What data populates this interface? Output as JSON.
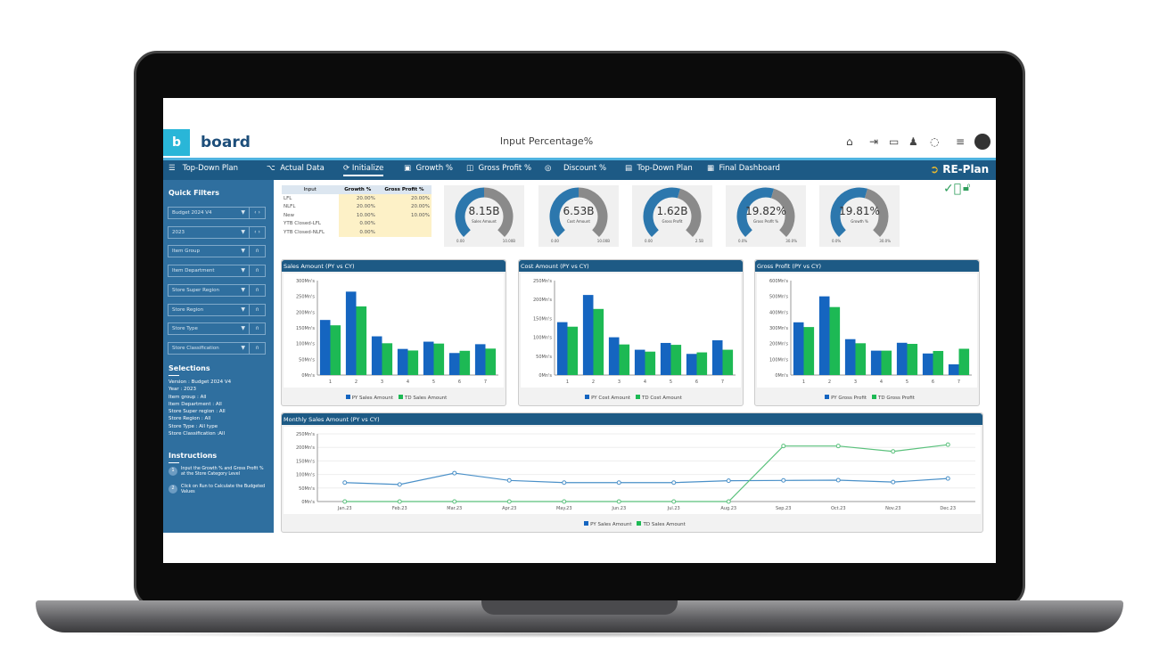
{
  "header": {
    "logo_letter": "b",
    "brand": "board",
    "title": "Input Percentage%",
    "icons": [
      "home-icon",
      "logout-icon",
      "screen-icon",
      "users-icon",
      "chat-icon",
      "menu-icon"
    ]
  },
  "nav": {
    "items": [
      {
        "label": "Top-Down Plan",
        "icon": "hamburger-icon"
      },
      {
        "label": "Actual Data",
        "icon": "flow-icon"
      },
      {
        "label": "Initialize",
        "icon": "refresh-icon",
        "active": true
      },
      {
        "label": "Growth %",
        "icon": "chart-icon"
      },
      {
        "label": "Gross Profit %",
        "icon": "profit-icon"
      },
      {
        "label": "Discount %",
        "icon": "coin-icon"
      },
      {
        "label": "Top-Down Plan",
        "icon": "table-icon"
      },
      {
        "label": "Final Dashboard",
        "icon": "dashboard-icon"
      }
    ],
    "app_name": "RE-Plan"
  },
  "sidebar": {
    "quick_filters_title": "Quick Filters",
    "filters": [
      "Budget 2024 V4",
      "2023",
      "Item Group",
      "Item Department",
      "Store Super Region",
      "Store Region",
      "Store Type",
      "Store Classification"
    ],
    "selections_title": "Selections",
    "selections": [
      "Version : Budget 2024 V4",
      "Year : 2023",
      "Item group : All",
      "Item Department : All",
      "Store Super region : All",
      "Store Region : All",
      "Store Type : All type",
      "Store Classification :All"
    ],
    "instructions_title": "Instructions",
    "instructions": [
      {
        "num": "1",
        "text": "Input the Growth % and Gross Profit % at the Store Category Level"
      },
      {
        "num": "2",
        "text": "Click on Run to Calculate the Budgeted Values"
      }
    ]
  },
  "input_table": {
    "headers": [
      "Input",
      "Growth %",
      "Gross Profit %"
    ],
    "rows": [
      [
        "LFL",
        "20.00%",
        "20.00%"
      ],
      [
        "NLFL",
        "20.00%",
        "20.00%"
      ],
      [
        "New",
        "10.00%",
        "10.00%"
      ],
      [
        "YTB Closed-LFL",
        "0.00%",
        ""
      ],
      [
        "YTB Closed-NLFL",
        "0.00%",
        ""
      ]
    ]
  },
  "gauges": [
    {
      "value": "8.15B",
      "label": "Sales Amount",
      "min": "0.00",
      "max": "10.00B",
      "fill": 0.5
    },
    {
      "value": "6.53B",
      "label": "Cost Amount",
      "min": "0.00",
      "max": "10.00B",
      "fill": 0.5
    },
    {
      "value": "1.62B",
      "label": "Gross Profit",
      "min": "0.00",
      "max": "2.5B",
      "fill": 0.56
    },
    {
      "value": "19.82%",
      "label": "Gross Profit %",
      "min": "0.0%",
      "max": "30.0%",
      "fill": 0.56
    },
    {
      "value": "19.81%",
      "label": "Growth %",
      "min": "0.0%",
      "max": "30.0%",
      "fill": 0.56
    }
  ],
  "colors": {
    "primary": "#1d5a85",
    "sidebar": "#2f6f9f",
    "py": "#1565c0",
    "td": "#1db954",
    "gauge_fill": "#2c77ad",
    "gauge_rest": "#8a8a8a"
  },
  "chart_data": [
    {
      "type": "bar",
      "title": "Sales Amount (PY vs CY)",
      "categories": [
        "1",
        "2",
        "3",
        "4",
        "5",
        "6",
        "7"
      ],
      "series": [
        {
          "name": "PY Sales Amount",
          "values": [
            175,
            265,
            123,
            83,
            106,
            70,
            98
          ]
        },
        {
          "name": "TD Sales Amount",
          "values": [
            158,
            218,
            101,
            78,
            100,
            77,
            84
          ]
        }
      ],
      "ylim": [
        0,
        300
      ],
      "yticks": [
        "0Mn's",
        "50Mn's",
        "100Mn's",
        "150Mn's",
        "200Mn's",
        "250Mn's",
        "300Mn's"
      ],
      "legend": "bottom"
    },
    {
      "type": "bar",
      "title": "Cost Amount (PY vs CY)",
      "categories": [
        "1",
        "2",
        "3",
        "4",
        "5",
        "6",
        "7"
      ],
      "series": [
        {
          "name": "PY Cost Amount",
          "values": [
            140,
            212,
            100,
            67,
            85,
            56,
            92
          ]
        },
        {
          "name": "TD Cost Amount",
          "values": [
            128,
            175,
            81,
            62,
            80,
            60,
            67
          ]
        }
      ],
      "ylim": [
        0,
        250
      ],
      "yticks": [
        "0Mn's",
        "50Mn's",
        "100Mn's",
        "150Mn's",
        "200Mn's",
        "250Mn's"
      ],
      "legend": "bottom"
    },
    {
      "type": "bar",
      "title": "Gross Profit (PY vs CY)",
      "categories": [
        "1",
        "2",
        "3",
        "4",
        "5",
        "6",
        "7"
      ],
      "series": [
        {
          "name": "PY Gross Profit",
          "values": [
            335,
            500,
            228,
            155,
            205,
            137,
            68
          ]
        },
        {
          "name": "TD Gross Profit",
          "values": [
            305,
            432,
            202,
            155,
            198,
            153,
            167
          ]
        }
      ],
      "ylim": [
        0,
        600
      ],
      "yticks": [
        "0Mn's",
        "100Mn's",
        "200Mn's",
        "300Mn's",
        "400Mn's",
        "500Mn's",
        "600Mn's"
      ],
      "legend": "bottom"
    },
    {
      "type": "line",
      "title": "Monthly Sales Amount (PY vs CY)",
      "categories": [
        "Jan.23",
        "Feb.23",
        "Mar.23",
        "Apr.23",
        "May.23",
        "Jun.23",
        "Jul.23",
        "Aug.23",
        "Sep.23",
        "Oct.23",
        "Nov.23",
        "Dec.23"
      ],
      "series": [
        {
          "name": "PY Sales Amount",
          "values": [
            70,
            63,
            105,
            78,
            70,
            70,
            70,
            77,
            78,
            79,
            72,
            85
          ]
        },
        {
          "name": "TD Sales Amount",
          "values": [
            0,
            0,
            0,
            0,
            0,
            0,
            0,
            0,
            205,
            205,
            185,
            210
          ]
        }
      ],
      "ylim": [
        0,
        250
      ],
      "yticks": [
        "0Mn's",
        "50Mn's",
        "100Mn's",
        "150Mn's",
        "200Mn's",
        "250Mn's"
      ],
      "legend": "bottom"
    }
  ]
}
